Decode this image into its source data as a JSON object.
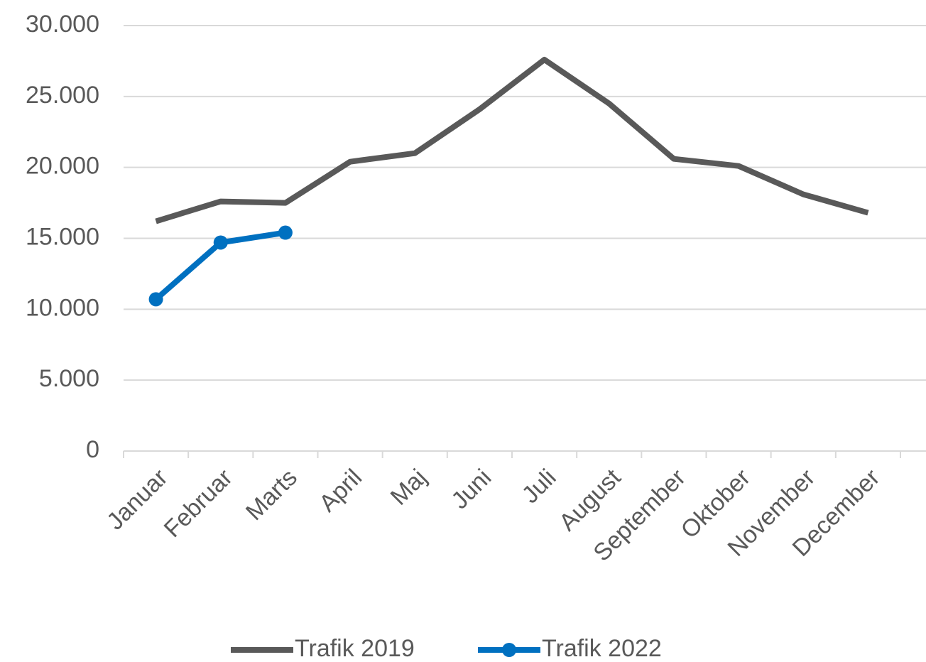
{
  "chart_data": {
    "type": "line",
    "categories": [
      "Januar",
      "Februar",
      "Marts",
      "April",
      "Maj",
      "Juni",
      "Juli",
      "August",
      "September",
      "Oktober",
      "November",
      "December"
    ],
    "series": [
      {
        "name": "Trafik 2019",
        "color": "#595959",
        "marker": false,
        "values": [
          16200,
          17600,
          17500,
          20400,
          21000,
          24100,
          27600,
          24500,
          20600,
          20100,
          18100,
          16800
        ]
      },
      {
        "name": "Trafik 2022",
        "color": "#0070c0",
        "marker": true,
        "values": [
          10700,
          14700,
          15400,
          null,
          null,
          null,
          null,
          null,
          null,
          null,
          null,
          null
        ]
      }
    ],
    "ylim": [
      0,
      30000
    ],
    "yticks": [
      0,
      {
        "value": 5000,
        "label": "5.000"
      },
      {
        "value": 10000,
        "label": "10.000"
      },
      {
        "value": 15000,
        "label": "15.000"
      },
      {
        "value": 20000,
        "label": "20.000"
      },
      {
        "value": 25000,
        "label": "25.000"
      },
      {
        "value": 30000,
        "label": "30.000"
      }
    ],
    "grid": true,
    "legend": "bottom"
  }
}
